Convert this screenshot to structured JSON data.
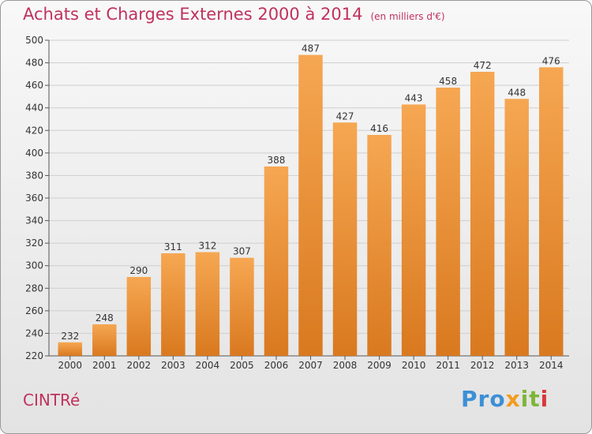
{
  "title": "Achats et Charges Externes 2000 à 2014",
  "unit_note": "(en milliers d'€)",
  "commune": "CINTRé",
  "logo": {
    "text": "Proxiti",
    "letters": [
      "Pro",
      "x",
      "it",
      "i"
    ]
  },
  "colors": {
    "title": "#c0325e",
    "bar_top": "#f6a752",
    "bar_bottom": "#d9791f",
    "grid": "#cfcfcf"
  },
  "chart_data": {
    "type": "bar",
    "title": "Achats et Charges Externes 2000 à 2014",
    "xlabel": "",
    "ylabel": "",
    "categories": [
      "2000",
      "2001",
      "2002",
      "2003",
      "2004",
      "2005",
      "2006",
      "2007",
      "2008",
      "2009",
      "2010",
      "2011",
      "2012",
      "2013",
      "2014"
    ],
    "values": [
      232,
      248,
      290,
      311,
      312,
      307,
      388,
      487,
      427,
      416,
      443,
      458,
      472,
      448,
      476
    ],
    "ylim": [
      220,
      500
    ],
    "yticks": [
      220,
      240,
      260,
      280,
      300,
      320,
      340,
      360,
      380,
      400,
      420,
      440,
      460,
      480,
      500
    ],
    "grid": true,
    "data_labels": true
  }
}
